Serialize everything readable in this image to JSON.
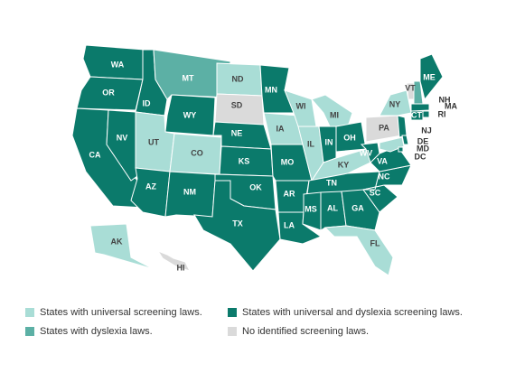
{
  "legend": [
    {
      "label": "States with universal screening laws.",
      "color": "#a9ddd6"
    },
    {
      "label": "States with dyslexia laws.",
      "color": "#5cb0a5"
    },
    {
      "label": "States with universal and dyslexia screening laws.",
      "color": "#0b7a6b"
    },
    {
      "label": "No identified screening laws.",
      "color": "#dadada"
    }
  ],
  "states": [
    {
      "label": "WA",
      "color": "#0b7a6b"
    },
    {
      "label": "OR",
      "color": "#0b7a6b"
    },
    {
      "label": "CA",
      "color": "#0b7a6b"
    },
    {
      "label": "NV",
      "color": "#0b7a6b"
    },
    {
      "label": "ID",
      "color": "#0b7a6b"
    },
    {
      "label": "MT",
      "color": "#5cb0a5"
    },
    {
      "label": "WY",
      "color": "#0b7a6b"
    },
    {
      "label": "UT",
      "color": "#a9ddd6"
    },
    {
      "label": "CO",
      "color": "#a9ddd6"
    },
    {
      "label": "AZ",
      "color": "#0b7a6b"
    },
    {
      "label": "NM",
      "color": "#0b7a6b"
    },
    {
      "label": "ND",
      "color": "#a9ddd6"
    },
    {
      "label": "SD",
      "color": "#dadada"
    },
    {
      "label": "NE",
      "color": "#0b7a6b"
    },
    {
      "label": "KS",
      "color": "#0b7a6b"
    },
    {
      "label": "OK",
      "color": "#0b7a6b"
    },
    {
      "label": "TX",
      "color": "#0b7a6b"
    },
    {
      "label": "MN",
      "color": "#0b7a6b"
    },
    {
      "label": "IA",
      "color": "#a9ddd6"
    },
    {
      "label": "MO",
      "color": "#0b7a6b"
    },
    {
      "label": "AR",
      "color": "#0b7a6b"
    },
    {
      "label": "LA",
      "color": "#0b7a6b"
    },
    {
      "label": "WI",
      "color": "#a9ddd6"
    },
    {
      "label": "IL",
      "color": "#a9ddd6"
    },
    {
      "label": "MI",
      "color": "#a9ddd6"
    },
    {
      "label": "IN",
      "color": "#0b7a6b"
    },
    {
      "label": "OH",
      "color": "#0b7a6b"
    },
    {
      "label": "KY",
      "color": "#a9ddd6"
    },
    {
      "label": "TN",
      "color": "#0b7a6b"
    },
    {
      "label": "MS",
      "color": "#0b7a6b"
    },
    {
      "label": "AL",
      "color": "#0b7a6b"
    },
    {
      "label": "GA",
      "color": "#0b7a6b"
    },
    {
      "label": "FL",
      "color": "#a9ddd6"
    },
    {
      "label": "SC",
      "color": "#0b7a6b"
    },
    {
      "label": "NC",
      "color": "#0b7a6b"
    },
    {
      "label": "VA",
      "color": "#0b7a6b"
    },
    {
      "label": "WV",
      "color": "#0b7a6b"
    },
    {
      "label": "PA",
      "color": "#dadada"
    },
    {
      "label": "NY",
      "color": "#a9ddd6"
    },
    {
      "label": "VT",
      "color": "#dadada"
    },
    {
      "label": "NH",
      "color": "#5cb0a5"
    },
    {
      "label": "ME",
      "color": "#0b7a6b"
    },
    {
      "label": "MA",
      "color": "#0b7a6b"
    },
    {
      "label": "RI",
      "color": "#0b7a6b"
    },
    {
      "label": "CT",
      "color": "#0b7a6b"
    },
    {
      "label": "NJ",
      "color": "#0b7a6b"
    },
    {
      "label": "DE",
      "color": "#0b7a6b"
    },
    {
      "label": "MD",
      "color": "#a9ddd6"
    },
    {
      "label": "DC",
      "color": "#0b7a6b"
    },
    {
      "label": "AK",
      "color": "#a9ddd6"
    },
    {
      "label": "HI",
      "color": "#dadada"
    }
  ]
}
